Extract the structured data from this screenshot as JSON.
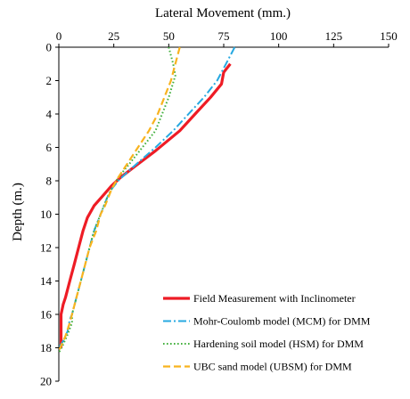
{
  "chart_data": {
    "type": "line",
    "xlabel": "Lateral Movement (mm.)",
    "ylabel": "Depth (m.)",
    "x_axis_position": "top",
    "y_axis_inverted": true,
    "xlim": [
      0,
      150
    ],
    "ylim": [
      0,
      20
    ],
    "xticks": [
      "0",
      "25",
      "50",
      "75",
      "100",
      "125",
      "150"
    ],
    "yticks": [
      "0",
      "2",
      "4",
      "6",
      "8",
      "10",
      "12",
      "14",
      "16",
      "18",
      "20"
    ],
    "grid": false,
    "legend_position": "bottom-right",
    "series": [
      {
        "name": "Field Measurement with Inclinometer",
        "color": "#ee1c25",
        "style": "solid-thick",
        "points": [
          [
            78,
            1
          ],
          [
            75,
            1.5
          ],
          [
            74,
            2.2
          ],
          [
            69,
            3
          ],
          [
            62,
            4
          ],
          [
            55,
            5
          ],
          [
            44,
            6.2
          ],
          [
            35,
            7.1
          ],
          [
            28,
            7.8
          ],
          [
            24,
            8.3
          ],
          [
            20,
            8.9
          ],
          [
            16,
            9.5
          ],
          [
            13,
            10.2
          ],
          [
            11,
            11
          ],
          [
            9,
            12
          ],
          [
            7,
            13
          ],
          [
            5,
            14
          ],
          [
            3,
            15
          ],
          [
            2,
            15.4
          ],
          [
            1,
            16
          ],
          [
            1,
            17
          ],
          [
            1,
            18
          ]
        ]
      },
      {
        "name": "Mohr-Coulomb model (MCM) for DMM",
        "color": "#27a9e1",
        "style": "dash-dot",
        "points": [
          [
            80,
            0
          ],
          [
            76,
            1
          ],
          [
            72,
            2
          ],
          [
            66,
            3
          ],
          [
            59,
            4
          ],
          [
            52,
            5
          ],
          [
            44,
            6
          ],
          [
            37,
            6.8
          ],
          [
            31,
            7.5
          ],
          [
            27,
            8
          ],
          [
            24,
            8.5
          ],
          [
            22,
            9
          ],
          [
            19,
            10
          ],
          [
            16,
            11
          ],
          [
            14,
            12
          ],
          [
            12,
            13
          ],
          [
            10,
            14
          ],
          [
            8,
            15
          ],
          [
            6,
            16
          ],
          [
            5,
            16.3
          ],
          [
            4,
            17
          ],
          [
            2,
            17.6
          ],
          [
            0,
            18
          ]
        ]
      },
      {
        "name": "Hardening soil model (HSM) for DMM",
        "color": "#43b03e",
        "style": "dotted",
        "points": [
          [
            50,
            0
          ],
          [
            51,
            0.5
          ],
          [
            52,
            1
          ],
          [
            53,
            1.7
          ],
          [
            50,
            3
          ],
          [
            47,
            4
          ],
          [
            44,
            5
          ],
          [
            38,
            6
          ],
          [
            32,
            7
          ],
          [
            27,
            7.8
          ],
          [
            24,
            8.5
          ],
          [
            22,
            9
          ],
          [
            19,
            10
          ],
          [
            16,
            11
          ],
          [
            14,
            12
          ],
          [
            12,
            13
          ],
          [
            10,
            14
          ],
          [
            8,
            15
          ],
          [
            6,
            16
          ],
          [
            6,
            16.5
          ],
          [
            4,
            17.2
          ],
          [
            2,
            17.8
          ],
          [
            0,
            18.3
          ]
        ]
      },
      {
        "name": "UBC sand model (UBSM) for DMM",
        "color": "#f8b31f",
        "style": "dashed",
        "points": [
          [
            55,
            0
          ],
          [
            53,
            1
          ],
          [
            51,
            2
          ],
          [
            48,
            3
          ],
          [
            45,
            4
          ],
          [
            41,
            5
          ],
          [
            36,
            6
          ],
          [
            31,
            7
          ],
          [
            27,
            7.8
          ],
          [
            24,
            8.5
          ],
          [
            21,
            9.5
          ],
          [
            19,
            10
          ],
          [
            17,
            11
          ],
          [
            14,
            12
          ],
          [
            12,
            13
          ],
          [
            10,
            14
          ],
          [
            8,
            15
          ],
          [
            6,
            16
          ],
          [
            5,
            16.5
          ],
          [
            3,
            17.3
          ],
          [
            1,
            17.9
          ],
          [
            0,
            18.2
          ]
        ]
      }
    ]
  }
}
